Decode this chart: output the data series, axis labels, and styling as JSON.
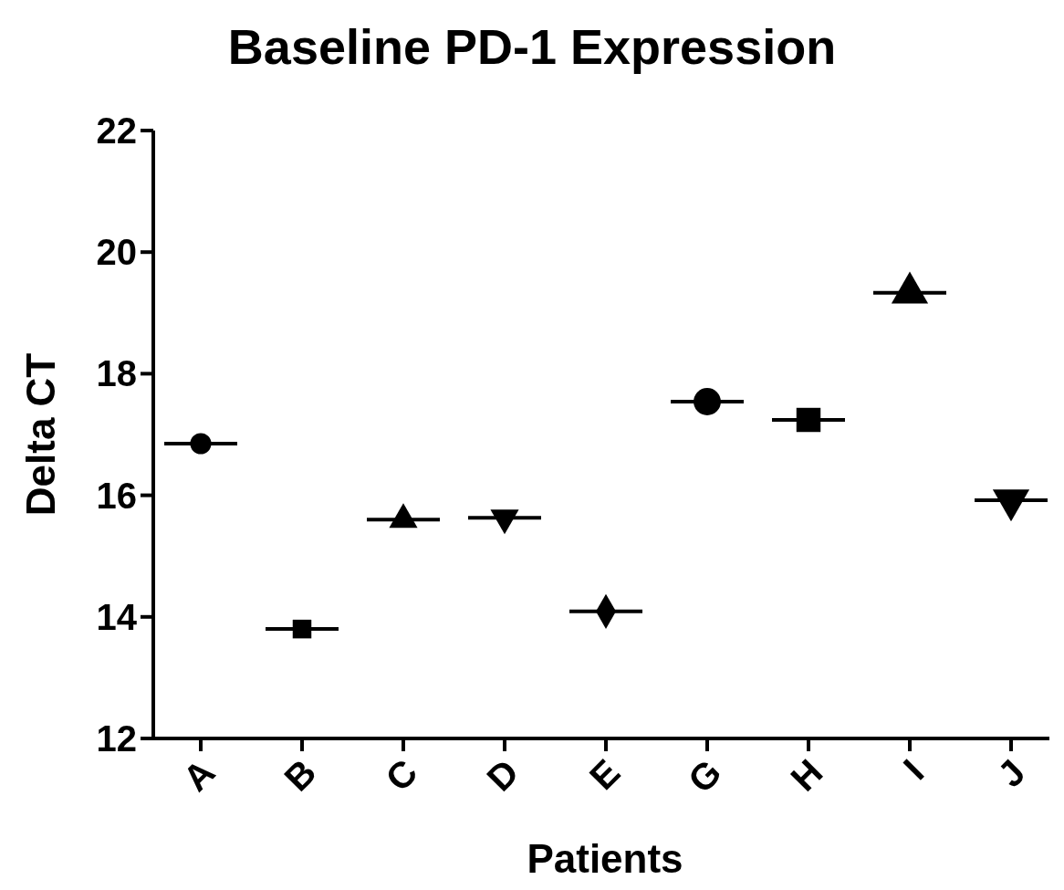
{
  "chart_data": {
    "type": "box",
    "title": "Baseline PD-1 Expression",
    "xlabel": "Patients",
    "ylabel": "Delta CT",
    "categories": [
      "A",
      "B",
      "C",
      "D",
      "E",
      "G",
      "H",
      "I",
      "J"
    ],
    "ylim": [
      12,
      22
    ],
    "yticks": [
      12,
      14,
      16,
      18,
      20,
      22
    ],
    "grid": false,
    "boxes": [
      {
        "low": 16.85,
        "q1": 16.85,
        "median": 16.85,
        "q3": 16.85,
        "high": 16.85
      },
      {
        "low": 13.8,
        "q1": 13.8,
        "median": 13.8,
        "q3": 13.8,
        "high": 13.8
      },
      {
        "low": 15.6,
        "q1": 15.6,
        "median": 15.6,
        "q3": 15.6,
        "high": 15.6
      },
      {
        "low": 15.63,
        "q1": 15.63,
        "median": 15.63,
        "q3": 15.63,
        "high": 15.63
      },
      {
        "low": 14.09,
        "q1": 14.09,
        "median": 14.09,
        "q3": 14.09,
        "high": 14.09
      },
      {
        "low": 17.54,
        "q1": 17.54,
        "median": 17.54,
        "q3": 17.54,
        "high": 17.54
      },
      {
        "low": 17.24,
        "q1": 17.24,
        "median": 17.24,
        "q3": 17.24,
        "high": 17.24
      },
      {
        "low": 19.33,
        "q1": 19.33,
        "median": 19.33,
        "q3": 19.33,
        "high": 19.33
      },
      {
        "low": 15.92,
        "q1": 15.92,
        "median": 15.92,
        "q3": 15.92,
        "high": 15.92
      }
    ],
    "series": [
      {
        "type": "scatter",
        "marker": "circle",
        "color": "#000000",
        "x": [
          "A"
        ],
        "values": [
          16.85
        ]
      },
      {
        "type": "scatter",
        "marker": "square",
        "color": "#000000",
        "x": [
          "B"
        ],
        "values": [
          13.8
        ]
      },
      {
        "type": "scatter",
        "marker": "triangle",
        "color": "#000000",
        "x": [
          "C"
        ],
        "values": [
          15.6
        ]
      },
      {
        "type": "scatter",
        "marker": "triangle-down",
        "color": "#000000",
        "x": [
          "D"
        ],
        "values": [
          15.63
        ]
      },
      {
        "type": "scatter",
        "marker": "diamond",
        "color": "#000000",
        "x": [
          "E"
        ],
        "values": [
          14.09
        ]
      },
      {
        "type": "scatter",
        "marker": "circle",
        "color": "#000000",
        "x": [
          "G"
        ],
        "values": [
          17.54
        ]
      },
      {
        "type": "scatter",
        "marker": "square",
        "color": "#000000",
        "x": [
          "H"
        ],
        "values": [
          17.24
        ]
      },
      {
        "type": "scatter",
        "marker": "triangle",
        "color": "#000000",
        "x": [
          "I"
        ],
        "values": [
          19.33
        ]
      },
      {
        "type": "scatter",
        "marker": "triangle-down",
        "color": "#000000",
        "x": [
          "J"
        ],
        "values": [
          15.92
        ]
      }
    ]
  }
}
